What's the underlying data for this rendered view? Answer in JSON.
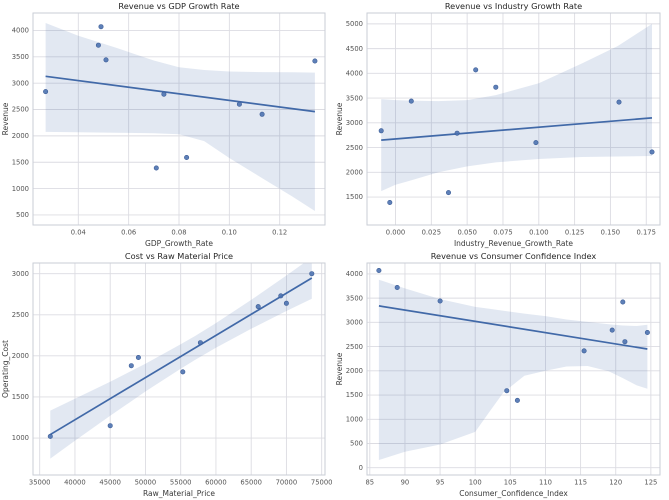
{
  "figure": {
    "background": "#ffffff",
    "plot_background": "#ffffff",
    "accent": "#4c72b0",
    "point_fill": "#4c72b0",
    "point_edge": "#3b5c96",
    "line_color": "#4169a8",
    "band_color": "#4c72b0",
    "band_opacity": 0.16,
    "grid_color": "#dcdce2",
    "spine_color": "#c9cdd6",
    "title_color": "#262626",
    "label_color": "#3a3a3a",
    "tick_color": "#555555"
  },
  "chart_data": [
    {
      "type": "scatter",
      "id": "revenue-vs-gdp-growth-rate",
      "title": "Revenue vs GDP Growth Rate",
      "xlabel": "GDP_Growth_Rate",
      "ylabel": "Revenue",
      "xlim": [
        0.022,
        0.138
      ],
      "ylim": [
        310,
        4330
      ],
      "xticks": [
        0.04,
        0.06,
        0.08,
        0.1,
        0.12
      ],
      "xtick_labels": [
        "0.04",
        "0.06",
        "0.08",
        "0.10",
        "0.12"
      ],
      "yticks": [
        500,
        1000,
        1500,
        2000,
        2500,
        3000,
        3500,
        4000
      ],
      "ytick_labels": [
        "500",
        "1000",
        "1500",
        "2000",
        "2500",
        "3000",
        "3500",
        "4000"
      ],
      "grid": true,
      "legend": null,
      "points": {
        "x": [
          0.027,
          0.048,
          0.049,
          0.051,
          0.071,
          0.074,
          0.083,
          0.104,
          0.113,
          0.134
        ],
        "y": [
          2840,
          3720,
          4070,
          3440,
          1390,
          2790,
          1590,
          2600,
          2410,
          3420
        ]
      },
      "regression_line": {
        "x": [
          0.027,
          0.134
        ],
        "y": [
          3130,
          2460
        ]
      },
      "ci_band": {
        "x": [
          0.027,
          0.04,
          0.055,
          0.07,
          0.08,
          0.09,
          0.1,
          0.113,
          0.125,
          0.134
        ],
        "upper": [
          4140,
          3900,
          3670,
          3430,
          3300,
          3250,
          3220,
          3210,
          3205,
          3200
        ],
        "lower": [
          2075,
          2070,
          2060,
          2050,
          2030,
          1900,
          1580,
          1200,
          850,
          575
        ]
      }
    },
    {
      "type": "scatter",
      "id": "revenue-vs-industry-growth-rate",
      "title": "Revenue vs Industry Growth Rate",
      "xlabel": "Industry_Revenue_Growth_Rate",
      "ylabel": "Revenue",
      "xlim": [
        -0.0199,
        0.1846
      ],
      "ylim": [
        935,
        5220
      ],
      "xticks": [
        0.0,
        0.025,
        0.05,
        0.075,
        0.1,
        0.125,
        0.15,
        0.175
      ],
      "xtick_labels": [
        "0.000",
        "0.025",
        "0.050",
        "0.075",
        "0.100",
        "0.125",
        "0.150",
        "0.175"
      ],
      "yticks": [
        1500,
        2000,
        2500,
        3000,
        3500,
        4000,
        4500,
        5000
      ],
      "ytick_labels": [
        "1500",
        "2000",
        "2500",
        "3000",
        "3500",
        "4000",
        "4500",
        "5000"
      ],
      "grid": true,
      "legend": null,
      "points": {
        "x": [
          -0.01,
          -0.004,
          0.011,
          0.037,
          0.043,
          0.056,
          0.07,
          0.098,
          0.156,
          0.179
        ],
        "y": [
          2840,
          1390,
          3440,
          1590,
          2790,
          4070,
          3720,
          2600,
          3420,
          2410
        ]
      },
      "regression_line": {
        "x": [
          -0.01,
          0.179
        ],
        "y": [
          2650,
          3100
        ]
      },
      "ci_band": {
        "x": [
          -0.01,
          0.0,
          0.01,
          0.03,
          0.05,
          0.07,
          0.1,
          0.13,
          0.155,
          0.179
        ],
        "upper": [
          3480,
          3460,
          3450,
          3440,
          3460,
          3560,
          3800,
          4200,
          4550,
          5000
        ],
        "lower": [
          1620,
          1750,
          1830,
          2000,
          2120,
          2200,
          2270,
          2310,
          2320,
          2330
        ]
      }
    },
    {
      "type": "scatter",
      "id": "cost-vs-raw-material-price",
      "title": "Cost vs Raw Material Price",
      "xlabel": "Raw_Material_Price",
      "ylabel": "Operating_Cost",
      "xlim": [
        34050,
        75470
      ],
      "ylim": [
        550,
        3130
      ],
      "xticks": [
        35000,
        40000,
        45000,
        50000,
        55000,
        60000,
        65000,
        70000,
        75000
      ],
      "xtick_labels": [
        "35000",
        "40000",
        "45000",
        "50000",
        "55000",
        "60000",
        "65000",
        "70000",
        "75000"
      ],
      "yticks": [
        1000,
        1500,
        2000,
        2500,
        3000
      ],
      "ytick_labels": [
        "1000",
        "1500",
        "2000",
        "2500",
        "3000"
      ],
      "grid": true,
      "legend": null,
      "points": {
        "x": [
          36500,
          45000,
          48000,
          49000,
          55300,
          57800,
          66000,
          69200,
          70000,
          73600
        ],
        "y": [
          1020,
          1150,
          1880,
          1980,
          1805,
          2160,
          2600,
          2730,
          2640,
          3000
        ]
      },
      "regression_line": {
        "x": [
          36500,
          73600
        ],
        "y": [
          1042,
          2947
        ]
      },
      "ci_band": {
        "x": [
          36500,
          40000,
          45000,
          50000,
          55000,
          57040,
          60000,
          65000,
          70000,
          73600
        ],
        "upper": [
          1334,
          1478,
          1686,
          1904,
          2140,
          2241,
          2398,
          2681,
          2978,
          3198
        ],
        "lower": [
          750,
          966,
          1270,
          1566,
          1844,
          1951,
          2098,
          2329,
          2546,
          2696
        ]
      }
    },
    {
      "type": "scatter",
      "id": "revenue-vs-consumer-confidence-index",
      "title": "Revenue vs Consumer Confidence Index",
      "xlabel": "Consumer_Confidence_Index",
      "ylabel": "Revenue",
      "xlim": [
        84.6,
        126.3
      ],
      "ylim": [
        -150,
        4225
      ],
      "xticks": [
        85,
        90,
        95,
        100,
        105,
        110,
        115,
        120,
        125
      ],
      "xtick_labels": [
        "85",
        "90",
        "95",
        "100",
        "105",
        "110",
        "115",
        "120",
        "125"
      ],
      "yticks": [
        0,
        500,
        1000,
        1500,
        2000,
        2500,
        3000,
        3500,
        4000
      ],
      "ytick_labels": [
        "0",
        "500",
        "1000",
        "1500",
        "2000",
        "2500",
        "3000",
        "3500",
        "4000"
      ],
      "grid": true,
      "legend": null,
      "points": {
        "x": [
          86.3,
          88.9,
          95.0,
          104.5,
          106.0,
          115.5,
          119.5,
          121.0,
          121.3,
          124.5
        ],
        "y": [
          4070,
          3720,
          3440,
          1590,
          1390,
          2410,
          2840,
          3420,
          2600,
          2790
        ]
      },
      "regression_line": {
        "x": [
          86.3,
          124.5
        ],
        "y": [
          3340,
          2450
        ]
      },
      "ci_band": {
        "x": [
          86.3,
          90,
          95,
          100,
          102,
          104,
          107,
          110,
          113,
          116,
          119,
          121,
          123,
          124.5
        ],
        "upper": [
          3880,
          3700,
          3480,
          3320,
          3280,
          3240,
          3180,
          3130,
          3060,
          3010,
          2960,
          2935,
          2925,
          2950
        ],
        "lower": [
          160,
          330,
          480,
          740,
          1150,
          1550,
          1900,
          2000,
          2090,
          2100,
          1990,
          1850,
          1700,
          1630
        ]
      }
    }
  ]
}
